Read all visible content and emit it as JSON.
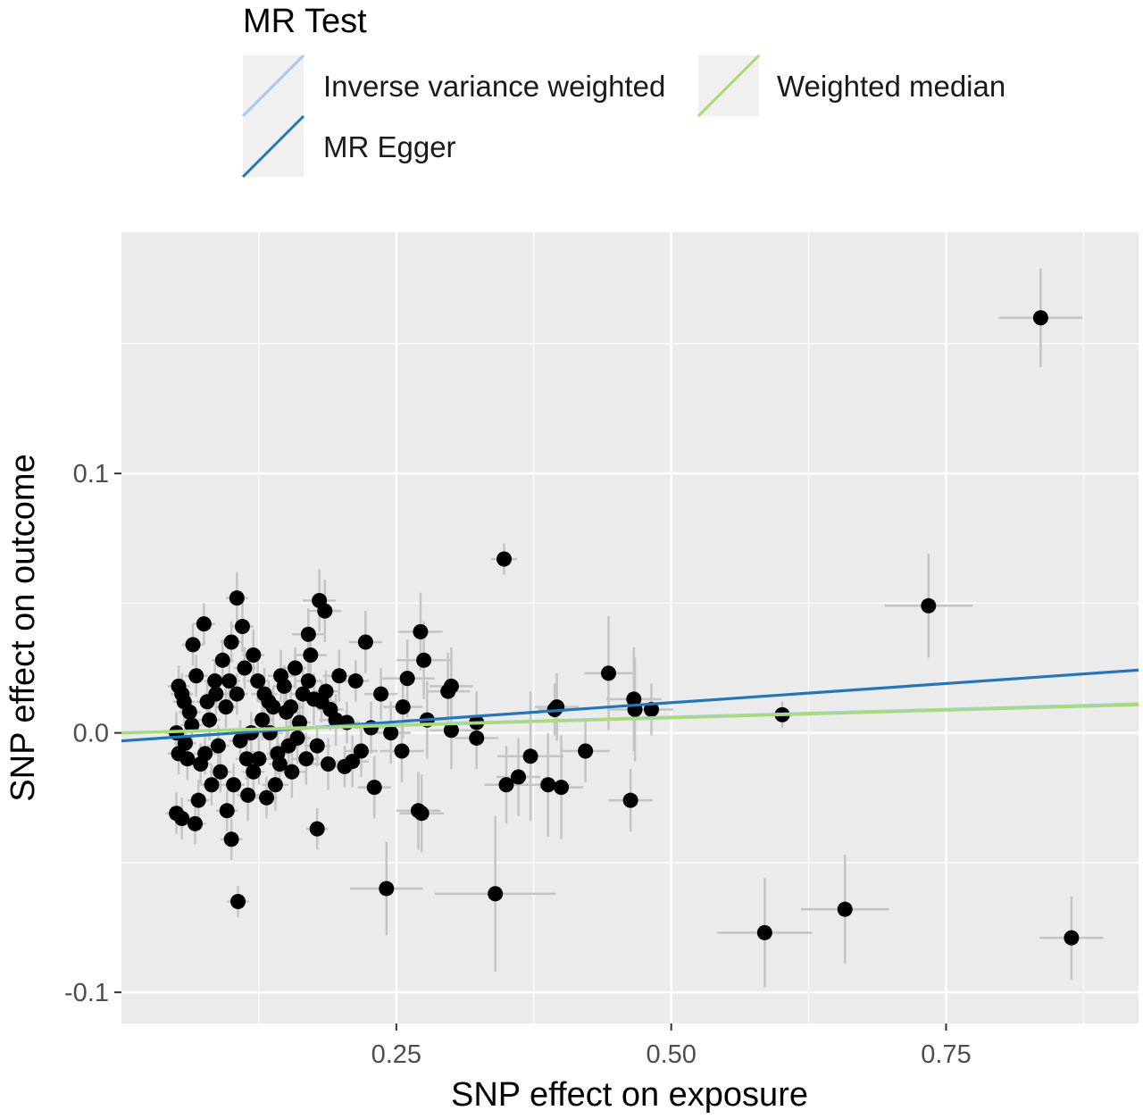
{
  "chart_data": {
    "type": "scatter",
    "xlabel": "SNP effect on exposure",
    "ylabel": "SNP effect on outcome",
    "xlim": [
      0.0,
      0.925
    ],
    "ylim": [
      -0.112,
      0.193
    ],
    "x_ticks": [
      {
        "value": 0.25,
        "label": "0.25"
      },
      {
        "value": 0.5,
        "label": "0.50"
      },
      {
        "value": 0.75,
        "label": "0.75"
      }
    ],
    "y_ticks": [
      {
        "value": 0.1,
        "label": "0.1"
      },
      {
        "value": 0.0,
        "label": "0.0"
      },
      {
        "value": -0.1,
        "label": "-0.1"
      }
    ],
    "grid": true,
    "legend": {
      "title": "MR Test",
      "position": "top",
      "entries": [
        {
          "name": "Inverse variance weighted",
          "color": "#a6c8e6"
        },
        {
          "name": "MR Egger",
          "color": "#2576b6"
        },
        {
          "name": "Weighted median",
          "color": "#a6dc78"
        }
      ]
    },
    "lines": [
      {
        "name": "Inverse variance weighted",
        "slope": 0.0121,
        "intercept": 0.0,
        "color": "#a6c8e6"
      },
      {
        "name": "MR Egger",
        "slope": 0.0295,
        "intercept": -0.0031,
        "color": "#2576b6"
      },
      {
        "name": "Weighted median",
        "slope": 0.0118,
        "intercept": -0.0001,
        "color": "#a6dc78"
      }
    ],
    "points": [
      {
        "x": 0.836,
        "y": 0.16,
        "xe": 0.038,
        "ye": 0.019
      },
      {
        "x": 0.734,
        "y": 0.049,
        "xe": 0.04,
        "ye": 0.02
      },
      {
        "x": 0.601,
        "y": 0.007,
        "xe": 0.01,
        "ye": 0.005
      },
      {
        "x": 0.585,
        "y": -0.077,
        "xe": 0.043,
        "ye": 0.021
      },
      {
        "x": 0.658,
        "y": -0.068,
        "xe": 0.04,
        "ye": 0.021
      },
      {
        "x": 0.864,
        "y": -0.079,
        "xe": 0.029,
        "ye": 0.016
      },
      {
        "x": 0.348,
        "y": 0.067,
        "xe": 0.012,
        "ye": 0.006
      },
      {
        "x": 0.443,
        "y": 0.023,
        "xe": 0.022,
        "ye": 0.022
      },
      {
        "x": 0.466,
        "y": 0.013,
        "xe": 0.025,
        "ye": 0.02
      },
      {
        "x": 0.467,
        "y": 0.009,
        "xe": 0.025,
        "ye": 0.02
      },
      {
        "x": 0.482,
        "y": 0.009,
        "xe": 0.02,
        "ye": 0.01
      },
      {
        "x": 0.396,
        "y": 0.01,
        "xe": 0.02,
        "ye": 0.013
      },
      {
        "x": 0.394,
        "y": 0.009,
        "xe": 0.015,
        "ye": 0.01
      },
      {
        "x": 0.422,
        "y": -0.007,
        "xe": 0.022,
        "ye": 0.012
      },
      {
        "x": 0.372,
        "y": -0.009,
        "xe": 0.03,
        "ye": 0.025
      },
      {
        "x": 0.361,
        "y": -0.017,
        "xe": 0.02,
        "ye": 0.015
      },
      {
        "x": 0.35,
        "y": -0.02,
        "xe": 0.02,
        "ye": 0.015
      },
      {
        "x": 0.388,
        "y": -0.02,
        "xe": 0.02,
        "ye": 0.02
      },
      {
        "x": 0.4,
        "y": -0.021,
        "xe": 0.02,
        "ye": 0.02
      },
      {
        "x": 0.463,
        "y": -0.026,
        "xe": 0.02,
        "ye": 0.012
      },
      {
        "x": 0.34,
        "y": -0.062,
        "xe": 0.055,
        "ye": 0.03
      },
      {
        "x": 0.241,
        "y": -0.06,
        "xe": 0.033,
        "ye": 0.018
      },
      {
        "x": 0.106,
        "y": -0.065,
        "xe": 0.01,
        "ye": 0.006
      },
      {
        "x": 0.178,
        "y": -0.037,
        "xe": 0.01,
        "ye": 0.008
      },
      {
        "x": 0.1,
        "y": -0.041,
        "xe": 0.01,
        "ye": 0.008
      },
      {
        "x": 0.26,
        "y": 0.021,
        "xe": 0.025,
        "ye": 0.015
      },
      {
        "x": 0.272,
        "y": 0.039,
        "xe": 0.02,
        "ye": 0.015
      },
      {
        "x": 0.275,
        "y": 0.028,
        "xe": 0.025,
        "ye": 0.015
      },
      {
        "x": 0.3,
        "y": 0.018,
        "xe": 0.02,
        "ye": 0.015
      },
      {
        "x": 0.297,
        "y": 0.016,
        "xe": 0.02,
        "ye": 0.015
      },
      {
        "x": 0.278,
        "y": 0.005,
        "xe": 0.02,
        "ye": 0.015
      },
      {
        "x": 0.3,
        "y": 0.001,
        "xe": 0.02,
        "ye": 0.015
      },
      {
        "x": 0.323,
        "y": 0.004,
        "xe": 0.02,
        "ye": 0.012
      },
      {
        "x": 0.323,
        "y": -0.002,
        "xe": 0.02,
        "ye": 0.012
      },
      {
        "x": 0.255,
        "y": -0.007,
        "xe": 0.02,
        "ye": 0.012
      },
      {
        "x": 0.27,
        "y": -0.03,
        "xe": 0.02,
        "ye": 0.015
      },
      {
        "x": 0.273,
        "y": -0.031,
        "xe": 0.02,
        "ye": 0.015
      },
      {
        "x": 0.256,
        "y": 0.01,
        "xe": 0.018,
        "ye": 0.012
      },
      {
        "x": 0.245,
        "y": 0.0,
        "xe": 0.018,
        "ye": 0.012
      },
      {
        "x": 0.236,
        "y": 0.015,
        "xe": 0.015,
        "ye": 0.01
      },
      {
        "x": 0.23,
        "y": -0.021,
        "xe": 0.015,
        "ye": 0.012
      },
      {
        "x": 0.227,
        "y": 0.002,
        "xe": 0.015,
        "ye": 0.01
      },
      {
        "x": 0.222,
        "y": 0.035,
        "xe": 0.015,
        "ye": 0.012
      },
      {
        "x": 0.218,
        "y": -0.007,
        "xe": 0.015,
        "ye": 0.01
      },
      {
        "x": 0.21,
        "y": -0.011,
        "xe": 0.015,
        "ye": 0.01
      },
      {
        "x": 0.198,
        "y": 0.022,
        "xe": 0.015,
        "ye": 0.01
      },
      {
        "x": 0.195,
        "y": 0.005,
        "xe": 0.015,
        "ye": 0.01
      },
      {
        "x": 0.188,
        "y": -0.012,
        "xe": 0.015,
        "ye": 0.01
      },
      {
        "x": 0.18,
        "y": 0.051,
        "xe": 0.015,
        "ye": 0.012
      },
      {
        "x": 0.185,
        "y": 0.047,
        "xe": 0.015,
        "ye": 0.012
      },
      {
        "x": 0.17,
        "y": 0.038,
        "xe": 0.015,
        "ye": 0.01
      },
      {
        "x": 0.172,
        "y": 0.03,
        "xe": 0.015,
        "ye": 0.01
      },
      {
        "x": 0.165,
        "y": 0.015,
        "xe": 0.012,
        "ye": 0.01
      },
      {
        "x": 0.175,
        "y": 0.013,
        "xe": 0.012,
        "ye": 0.01
      },
      {
        "x": 0.16,
        "y": -0.002,
        "xe": 0.012,
        "ye": 0.01
      },
      {
        "x": 0.168,
        "y": -0.01,
        "xe": 0.012,
        "ye": 0.01
      },
      {
        "x": 0.155,
        "y": -0.015,
        "xe": 0.012,
        "ye": 0.01
      },
      {
        "x": 0.15,
        "y": 0.008,
        "xe": 0.012,
        "ye": 0.01
      },
      {
        "x": 0.145,
        "y": 0.022,
        "xe": 0.012,
        "ye": 0.01
      },
      {
        "x": 0.14,
        "y": -0.02,
        "xe": 0.012,
        "ye": 0.01
      },
      {
        "x": 0.135,
        "y": 0.0,
        "xe": 0.012,
        "ye": 0.01
      },
      {
        "x": 0.13,
        "y": 0.015,
        "xe": 0.012,
        "ye": 0.01
      },
      {
        "x": 0.125,
        "y": -0.01,
        "xe": 0.012,
        "ye": 0.01
      },
      {
        "x": 0.12,
        "y": 0.03,
        "xe": 0.01,
        "ye": 0.01
      },
      {
        "x": 0.115,
        "y": -0.024,
        "xe": 0.01,
        "ye": 0.01
      },
      {
        "x": 0.11,
        "y": 0.041,
        "xe": 0.01,
        "ye": 0.01
      },
      {
        "x": 0.105,
        "y": 0.052,
        "xe": 0.01,
        "ye": 0.01
      },
      {
        "x": 0.1,
        "y": 0.035,
        "xe": 0.01,
        "ye": 0.008
      },
      {
        "x": 0.095,
        "y": 0.01,
        "xe": 0.01,
        "ye": 0.008
      },
      {
        "x": 0.09,
        "y": -0.015,
        "xe": 0.01,
        "ye": 0.008
      },
      {
        "x": 0.085,
        "y": 0.02,
        "xe": 0.01,
        "ye": 0.008
      },
      {
        "x": 0.08,
        "y": 0.005,
        "xe": 0.01,
        "ye": 0.008
      },
      {
        "x": 0.075,
        "y": 0.042,
        "xe": 0.01,
        "ye": 0.008
      },
      {
        "x": 0.07,
        "y": -0.026,
        "xe": 0.01,
        "ye": 0.008
      },
      {
        "x": 0.065,
        "y": 0.034,
        "xe": 0.01,
        "ye": 0.008
      },
      {
        "x": 0.06,
        "y": -0.01,
        "xe": 0.01,
        "ye": 0.008
      },
      {
        "x": 0.055,
        "y": 0.015,
        "xe": 0.01,
        "ye": 0.008
      },
      {
        "x": 0.05,
        "y": -0.031,
        "xe": 0.01,
        "ye": 0.008
      },
      {
        "x": 0.055,
        "y": -0.033,
        "xe": 0.01,
        "ye": 0.008
      },
      {
        "x": 0.067,
        "y": -0.035,
        "xe": 0.01,
        "ye": 0.008
      },
      {
        "x": 0.112,
        "y": 0.025,
        "xe": 0.01,
        "ye": 0.008
      },
      {
        "x": 0.108,
        "y": -0.003,
        "xe": 0.01,
        "ye": 0.008
      },
      {
        "x": 0.098,
        "y": 0.02,
        "xe": 0.01,
        "ye": 0.008
      },
      {
        "x": 0.088,
        "y": -0.005,
        "xe": 0.01,
        "ye": 0.008
      },
      {
        "x": 0.078,
        "y": 0.012,
        "xe": 0.01,
        "ye": 0.008
      },
      {
        "x": 0.072,
        "y": -0.012,
        "xe": 0.01,
        "ye": 0.008
      },
      {
        "x": 0.062,
        "y": 0.008,
        "xe": 0.01,
        "ye": 0.008
      },
      {
        "x": 0.058,
        "y": -0.004,
        "xe": 0.01,
        "ye": 0.008
      },
      {
        "x": 0.052,
        "y": 0.018,
        "xe": 0.01,
        "ye": 0.008
      },
      {
        "x": 0.05,
        "y": 0.0,
        "xe": 0.01,
        "ye": 0.008
      },
      {
        "x": 0.052,
        "y": -0.008,
        "xe": 0.01,
        "ye": 0.008
      },
      {
        "x": 0.12,
        "y": -0.015,
        "xe": 0.01,
        "ye": 0.008
      },
      {
        "x": 0.128,
        "y": 0.005,
        "xe": 0.01,
        "ye": 0.008
      },
      {
        "x": 0.138,
        "y": 0.01,
        "xe": 0.01,
        "ye": 0.008
      },
      {
        "x": 0.142,
        "y": -0.008,
        "xe": 0.01,
        "ye": 0.008
      },
      {
        "x": 0.148,
        "y": 0.018,
        "xe": 0.01,
        "ye": 0.008
      },
      {
        "x": 0.152,
        "y": -0.005,
        "xe": 0.01,
        "ye": 0.008
      },
      {
        "x": 0.158,
        "y": 0.025,
        "xe": 0.01,
        "ye": 0.008
      },
      {
        "x": 0.162,
        "y": 0.004,
        "xe": 0.01,
        "ye": 0.008
      },
      {
        "x": 0.178,
        "y": -0.005,
        "xe": 0.012,
        "ye": 0.008
      },
      {
        "x": 0.182,
        "y": 0.012,
        "xe": 0.012,
        "ye": 0.008
      },
      {
        "x": 0.19,
        "y": 0.009,
        "xe": 0.012,
        "ye": 0.008
      },
      {
        "x": 0.203,
        "y": -0.013,
        "xe": 0.012,
        "ye": 0.008
      },
      {
        "x": 0.205,
        "y": 0.004,
        "xe": 0.012,
        "ye": 0.008
      },
      {
        "x": 0.213,
        "y": 0.02,
        "xe": 0.012,
        "ye": 0.008
      },
      {
        "x": 0.092,
        "y": 0.028,
        "xe": 0.01,
        "ye": 0.008
      },
      {
        "x": 0.082,
        "y": -0.02,
        "xe": 0.01,
        "ye": 0.008
      },
      {
        "x": 0.068,
        "y": 0.022,
        "xe": 0.01,
        "ye": 0.008
      },
      {
        "x": 0.102,
        "y": -0.02,
        "xe": 0.01,
        "ye": 0.008
      },
      {
        "x": 0.118,
        "y": 0.0,
        "xe": 0.01,
        "ye": 0.008
      },
      {
        "x": 0.132,
        "y": -0.025,
        "xe": 0.01,
        "ye": 0.008
      },
      {
        "x": 0.096,
        "y": -0.03,
        "xe": 0.01,
        "ye": 0.008
      },
      {
        "x": 0.086,
        "y": 0.015,
        "xe": 0.01,
        "ye": 0.008
      },
      {
        "x": 0.076,
        "y": -0.008,
        "xe": 0.01,
        "ye": 0.008
      },
      {
        "x": 0.064,
        "y": 0.003,
        "xe": 0.01,
        "ye": 0.008
      },
      {
        "x": 0.057,
        "y": 0.012,
        "xe": 0.01,
        "ye": 0.008
      },
      {
        "x": 0.105,
        "y": 0.015,
        "xe": 0.01,
        "ye": 0.008
      },
      {
        "x": 0.114,
        "y": -0.01,
        "xe": 0.01,
        "ye": 0.008
      },
      {
        "x": 0.124,
        "y": 0.02,
        "xe": 0.01,
        "ye": 0.008
      },
      {
        "x": 0.134,
        "y": 0.012,
        "xe": 0.01,
        "ye": 0.008
      },
      {
        "x": 0.144,
        "y": -0.012,
        "xe": 0.01,
        "ye": 0.008
      },
      {
        "x": 0.154,
        "y": 0.01,
        "xe": 0.01,
        "ye": 0.008
      },
      {
        "x": 0.17,
        "y": 0.02,
        "xe": 0.012,
        "ye": 0.008
      },
      {
        "x": 0.186,
        "y": 0.016,
        "xe": 0.012,
        "ye": 0.008
      }
    ]
  }
}
